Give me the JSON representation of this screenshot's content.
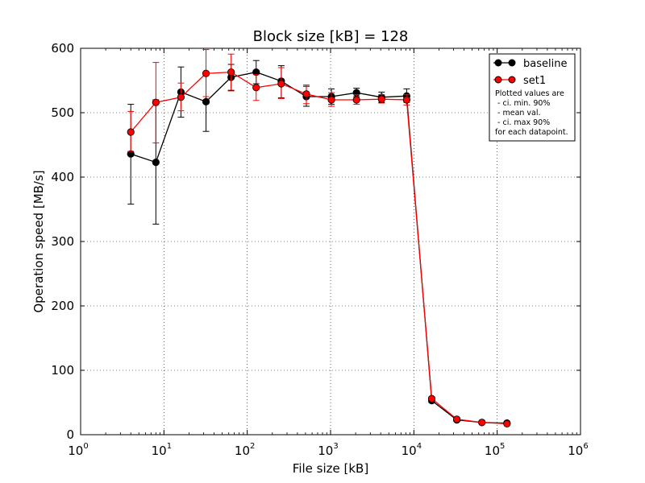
{
  "chart_data": {
    "type": "line",
    "title": "Block size [kB] = 128",
    "xlabel": "File size [kB]",
    "ylabel": "Operation speed [MB/s]",
    "xscale": "log",
    "xlim": [
      1,
      1000000
    ],
    "ylim": [
      0,
      600
    ],
    "yticks": [
      0,
      100,
      200,
      300,
      400,
      500,
      600
    ],
    "xtick_base": "10",
    "xtick_exponents": [
      "0",
      "1",
      "2",
      "3",
      "4",
      "5",
      "6"
    ],
    "grid": true,
    "legend_position": "top-right",
    "series": [
      {
        "name": "baseline",
        "color": "#000000",
        "x": [
          4,
          8,
          16,
          32,
          64,
          128,
          256,
          512,
          1024,
          2048,
          4096,
          8192,
          16384,
          32768,
          65536,
          131072
        ],
        "y": [
          436,
          423,
          532,
          517,
          555,
          563,
          549,
          525,
          525,
          531,
          524,
          526,
          53,
          23,
          19,
          18
        ],
        "ci_low": [
          358,
          327,
          493,
          471,
          534,
          545,
          523,
          510,
          513,
          525,
          516,
          516,
          50,
          21,
          18,
          17
        ],
        "ci_high": [
          513,
          520,
          571,
          563,
          575,
          581,
          573,
          541,
          537,
          538,
          532,
          537,
          56,
          25,
          20,
          19
        ]
      },
      {
        "name": "set1",
        "color": "#ff0000",
        "x": [
          4,
          8,
          16,
          32,
          64,
          128,
          256,
          512,
          1024,
          2048,
          4096,
          8192,
          16384,
          32768,
          65536,
          131072
        ],
        "y": [
          470,
          516,
          524,
          561,
          563,
          539,
          545,
          529,
          520,
          520,
          521,
          520,
          56,
          24,
          19,
          17
        ],
        "ci_low": [
          440,
          453,
          503,
          525,
          535,
          519,
          522,
          514,
          510,
          513,
          515,
          512,
          53,
          22,
          18,
          16
        ],
        "ci_high": [
          502,
          578,
          546,
          598,
          591,
          559,
          570,
          543,
          531,
          528,
          528,
          528,
          59,
          26,
          21,
          19
        ]
      }
    ],
    "legend_note": [
      "Plotted values are",
      " - ci. min. 90%",
      " - mean val.",
      " - ci. max 90%",
      "for each datapoint."
    ]
  }
}
